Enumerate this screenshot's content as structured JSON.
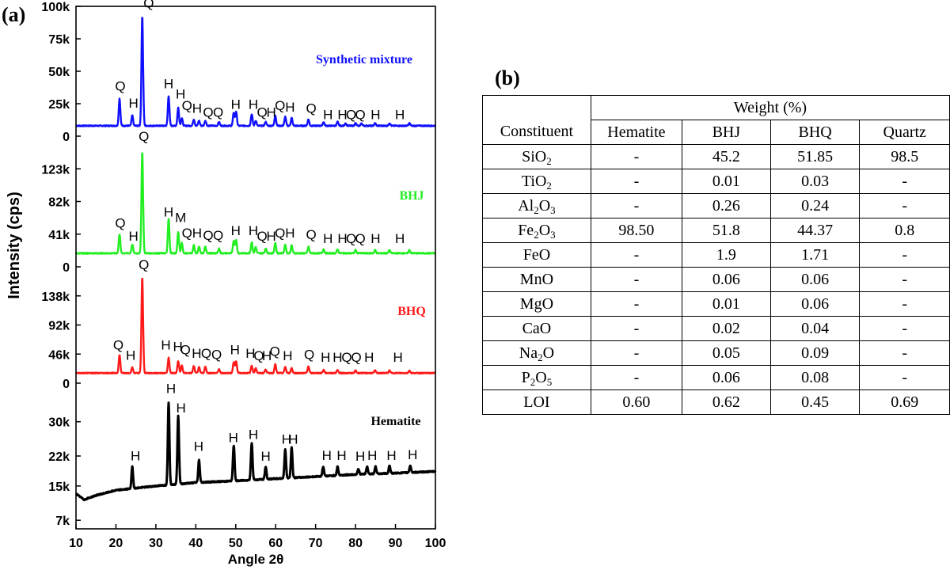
{
  "panel_a_label": "(a)",
  "panel_b_label": "(b)",
  "chart_data": {
    "type": "line",
    "xlabel": "Angle 2θ",
    "ylabel": "Intensity (cps)",
    "xlim": [
      10,
      100
    ],
    "xticks": [
      10,
      20,
      30,
      40,
      50,
      60,
      70,
      80,
      90,
      100
    ],
    "series": [
      {
        "name": "Synthetic mixture",
        "color": "#1010ff",
        "ylim": [
          0,
          100000
        ],
        "ytick_labels": [
          "0",
          "25k",
          "50k",
          "75k",
          "100k"
        ],
        "ytick_values": [
          0,
          25000,
          50000,
          75000,
          100000
        ],
        "baseline": 8000,
        "peaks": [
          {
            "x": 20.9,
            "y": 29000
          },
          {
            "x": 24.1,
            "y": 16000
          },
          {
            "x": 26.6,
            "y": 93000
          },
          {
            "x": 33.2,
            "y": 31000
          },
          {
            "x": 35.6,
            "y": 22000
          },
          {
            "x": 36.5,
            "y": 14000
          },
          {
            "x": 39.5,
            "y": 13000
          },
          {
            "x": 40.8,
            "y": 12000
          },
          {
            "x": 42.4,
            "y": 12000
          },
          {
            "x": 45.8,
            "y": 11000
          },
          {
            "x": 49.5,
            "y": 18000
          },
          {
            "x": 50.1,
            "y": 19000
          },
          {
            "x": 54.0,
            "y": 17000
          },
          {
            "x": 55.0,
            "y": 12000
          },
          {
            "x": 57.5,
            "y": 11000
          },
          {
            "x": 59.9,
            "y": 16000
          },
          {
            "x": 62.4,
            "y": 15000
          },
          {
            "x": 64.0,
            "y": 14000
          },
          {
            "x": 68.2,
            "y": 13000
          },
          {
            "x": 72.0,
            "y": 11000
          },
          {
            "x": 75.5,
            "y": 11000
          },
          {
            "x": 77.5,
            "y": 10000
          },
          {
            "x": 80.0,
            "y": 10000
          },
          {
            "x": 81.5,
            "y": 10000
          },
          {
            "x": 84.9,
            "y": 10000
          },
          {
            "x": 88.5,
            "y": 10000
          },
          {
            "x": 93.5,
            "y": 10000
          }
        ],
        "annotations": [
          {
            "label": "Q",
            "x": 21.1,
            "y": 35000
          },
          {
            "label": "H",
            "x": 24.4,
            "y": 22000
          },
          {
            "label": "Q",
            "x": 28.2,
            "y": 99000
          },
          {
            "label": "H",
            "x": 33.2,
            "y": 37000
          },
          {
            "label": "H",
            "x": 36.2,
            "y": 29000
          },
          {
            "label": "Q",
            "x": 37.8,
            "y": 20000
          },
          {
            "label": "H",
            "x": 40.3,
            "y": 18000
          },
          {
            "label": "Q",
            "x": 43.1,
            "y": 15000
          },
          {
            "label": "Q",
            "x": 45.6,
            "y": 15000
          },
          {
            "label": "H",
            "x": 50.0,
            "y": 21000
          },
          {
            "label": "H",
            "x": 54.4,
            "y": 21000
          },
          {
            "label": "Q",
            "x": 56.6,
            "y": 15000
          },
          {
            "label": "H",
            "x": 58.9,
            "y": 15000
          },
          {
            "label": "Q",
            "x": 61.1,
            "y": 20000
          },
          {
            "label": "H",
            "x": 63.6,
            "y": 19000
          },
          {
            "label": "Q",
            "x": 68.9,
            "y": 18000
          },
          {
            "label": "H",
            "x": 73.1,
            "y": 13000
          },
          {
            "label": "H",
            "x": 76.7,
            "y": 13000
          },
          {
            "label": "Q",
            "x": 78.9,
            "y": 13000
          },
          {
            "label": "Q",
            "x": 81.2,
            "y": 13000
          },
          {
            "label": "H",
            "x": 85.0,
            "y": 13000
          },
          {
            "label": "H",
            "x": 91.1,
            "y": 13000
          }
        ]
      },
      {
        "name": "BHJ",
        "color": "#22ee22",
        "ylim": [
          0,
          164000
        ],
        "ytick_labels": [
          "0",
          "41k",
          "82k",
          "123k"
        ],
        "ytick_values": [
          0,
          41000,
          82000,
          123000
        ],
        "baseline": 17000,
        "peaks": [
          {
            "x": 20.9,
            "y": 41000
          },
          {
            "x": 24.1,
            "y": 28000
          },
          {
            "x": 26.6,
            "y": 145000
          },
          {
            "x": 33.2,
            "y": 60000
          },
          {
            "x": 35.6,
            "y": 44000
          },
          {
            "x": 36.5,
            "y": 30000
          },
          {
            "x": 39.5,
            "y": 27000
          },
          {
            "x": 40.8,
            "y": 25000
          },
          {
            "x": 42.4,
            "y": 25000
          },
          {
            "x": 45.8,
            "y": 23000
          },
          {
            "x": 49.5,
            "y": 33000
          },
          {
            "x": 50.1,
            "y": 34000
          },
          {
            "x": 54.0,
            "y": 31000
          },
          {
            "x": 55.0,
            "y": 25000
          },
          {
            "x": 57.5,
            "y": 23000
          },
          {
            "x": 59.9,
            "y": 30000
          },
          {
            "x": 62.4,
            "y": 28000
          },
          {
            "x": 64.0,
            "y": 27000
          },
          {
            "x": 68.2,
            "y": 25000
          },
          {
            "x": 72.0,
            "y": 22000
          },
          {
            "x": 75.5,
            "y": 22000
          },
          {
            "x": 80.0,
            "y": 21000
          },
          {
            "x": 84.9,
            "y": 21000
          },
          {
            "x": 88.5,
            "y": 21000
          },
          {
            "x": 93.5,
            "y": 21000
          }
        ],
        "annotations": [
          {
            "label": "Q",
            "x": 21.1,
            "y": 49000
          },
          {
            "label": "H",
            "x": 24.4,
            "y": 33000
          },
          {
            "label": "Q",
            "x": 27.0,
            "y": 158000
          },
          {
            "label": "H",
            "x": 33.2,
            "y": 63000
          },
          {
            "label": "M",
            "x": 36.2,
            "y": 56000
          },
          {
            "label": "Q",
            "x": 37.8,
            "y": 37000
          },
          {
            "label": "H",
            "x": 40.3,
            "y": 37000
          },
          {
            "label": "Q",
            "x": 43.1,
            "y": 34000
          },
          {
            "label": "Q",
            "x": 45.6,
            "y": 34000
          },
          {
            "label": "H",
            "x": 50.0,
            "y": 40000
          },
          {
            "label": "H",
            "x": 54.4,
            "y": 40000
          },
          {
            "label": "Q",
            "x": 56.6,
            "y": 33000
          },
          {
            "label": "H",
            "x": 58.9,
            "y": 33000
          },
          {
            "label": "Q",
            "x": 61.1,
            "y": 37000
          },
          {
            "label": "H",
            "x": 63.6,
            "y": 37000
          },
          {
            "label": "Q",
            "x": 68.9,
            "y": 35000
          },
          {
            "label": "H",
            "x": 73.1,
            "y": 30000
          },
          {
            "label": "H",
            "x": 76.7,
            "y": 30000
          },
          {
            "label": "Q",
            "x": 78.9,
            "y": 30000
          },
          {
            "label": "Q",
            "x": 81.2,
            "y": 30000
          },
          {
            "label": "H",
            "x": 85.0,
            "y": 30000
          },
          {
            "label": "H",
            "x": 91.1,
            "y": 30000
          }
        ]
      },
      {
        "name": "BHQ",
        "color": "#ff1a1a",
        "ylim": [
          0,
          184000
        ],
        "ytick_labels": [
          "0",
          "46k",
          "92k",
          "138k"
        ],
        "ytick_values": [
          0,
          46000,
          92000,
          138000
        ],
        "baseline": 16000,
        "peaks": [
          {
            "x": 20.9,
            "y": 45000
          },
          {
            "x": 24.1,
            "y": 25000
          },
          {
            "x": 26.6,
            "y": 168000
          },
          {
            "x": 33.2,
            "y": 40000
          },
          {
            "x": 35.6,
            "y": 35000
          },
          {
            "x": 36.5,
            "y": 28000
          },
          {
            "x": 39.5,
            "y": 27000
          },
          {
            "x": 40.8,
            "y": 25000
          },
          {
            "x": 42.4,
            "y": 26000
          },
          {
            "x": 45.8,
            "y": 22000
          },
          {
            "x": 49.5,
            "y": 33000
          },
          {
            "x": 50.1,
            "y": 35000
          },
          {
            "x": 54.0,
            "y": 28000
          },
          {
            "x": 55.0,
            "y": 24000
          },
          {
            "x": 57.5,
            "y": 22000
          },
          {
            "x": 59.9,
            "y": 30000
          },
          {
            "x": 62.4,
            "y": 26000
          },
          {
            "x": 64.0,
            "y": 24000
          },
          {
            "x": 68.2,
            "y": 27000
          },
          {
            "x": 72.0,
            "y": 21000
          },
          {
            "x": 75.5,
            "y": 21000
          },
          {
            "x": 80.0,
            "y": 20000
          },
          {
            "x": 84.9,
            "y": 20000
          },
          {
            "x": 88.5,
            "y": 20000
          },
          {
            "x": 93.5,
            "y": 20000
          }
        ],
        "annotations": [
          {
            "label": "Q",
            "x": 20.6,
            "y": 53000
          },
          {
            "label": "H",
            "x": 23.7,
            "y": 37000
          },
          {
            "label": "Q",
            "x": 27.0,
            "y": 180000
          },
          {
            "label": "H",
            "x": 32.5,
            "y": 53000
          },
          {
            "label": "H",
            "x": 35.5,
            "y": 51000
          },
          {
            "label": "Q",
            "x": 37.4,
            "y": 46000
          },
          {
            "label": "H",
            "x": 40.2,
            "y": 40000
          },
          {
            "label": "Q",
            "x": 42.6,
            "y": 40000
          },
          {
            "label": "Q",
            "x": 45.2,
            "y": 38000
          },
          {
            "label": "H",
            "x": 49.8,
            "y": 46000
          },
          {
            "label": "H",
            "x": 53.7,
            "y": 40000
          },
          {
            "label": "Q",
            "x": 55.8,
            "y": 36000
          },
          {
            "label": "H",
            "x": 57.8,
            "y": 36000
          },
          {
            "label": "Q",
            "x": 59.8,
            "y": 43000
          },
          {
            "label": "H",
            "x": 63.0,
            "y": 36000
          },
          {
            "label": "Q",
            "x": 68.4,
            "y": 38000
          },
          {
            "label": "H",
            "x": 72.5,
            "y": 34000
          },
          {
            "label": "H",
            "x": 75.5,
            "y": 34000
          },
          {
            "label": "Q",
            "x": 77.8,
            "y": 34000
          },
          {
            "label": "Q",
            "x": 80.2,
            "y": 34000
          },
          {
            "label": "H",
            "x": 83.4,
            "y": 34000
          },
          {
            "label": "H",
            "x": 90.6,
            "y": 34000
          }
        ]
      },
      {
        "name": "Hematite",
        "color": "#000000",
        "ylim": [
          5000,
          39000
        ],
        "ytick_labels": [
          "7k",
          "15k",
          "22k",
          "30k"
        ],
        "ytick_values": [
          7000,
          15000,
          22000,
          30000
        ],
        "baseline_points": [
          [
            10,
            13200
          ],
          [
            12,
            11800
          ],
          [
            15,
            12800
          ],
          [
            20,
            14000
          ],
          [
            30,
            15000
          ],
          [
            40,
            15800
          ],
          [
            50,
            16200
          ],
          [
            60,
            16700
          ],
          [
            70,
            17200
          ],
          [
            80,
            17700
          ],
          [
            90,
            18000
          ],
          [
            100,
            18400
          ]
        ],
        "peaks": [
          {
            "x": 24.1,
            "y": 19500
          },
          {
            "x": 33.2,
            "y": 34500
          },
          {
            "x": 35.6,
            "y": 31500
          },
          {
            "x": 40.8,
            "y": 21000
          },
          {
            "x": 49.5,
            "y": 24500
          },
          {
            "x": 54.0,
            "y": 25000
          },
          {
            "x": 57.5,
            "y": 19500
          },
          {
            "x": 62.4,
            "y": 23500
          },
          {
            "x": 64.0,
            "y": 24000
          },
          {
            "x": 71.9,
            "y": 19500
          },
          {
            "x": 75.5,
            "y": 19500
          },
          {
            "x": 80.7,
            "y": 19000
          },
          {
            "x": 82.9,
            "y": 19500
          },
          {
            "x": 85.0,
            "y": 19500
          },
          {
            "x": 88.5,
            "y": 19800
          },
          {
            "x": 93.7,
            "y": 19800
          }
        ],
        "annotations": [
          {
            "label": "H",
            "x": 24.9,
            "y": 21000
          },
          {
            "label": "H",
            "x": 33.8,
            "y": 36700
          },
          {
            "label": "H",
            "x": 36.3,
            "y": 32200
          },
          {
            "label": "H",
            "x": 40.7,
            "y": 23200
          },
          {
            "label": "H",
            "x": 49.4,
            "y": 25200
          },
          {
            "label": "H",
            "x": 54.4,
            "y": 26000
          },
          {
            "label": "H",
            "x": 57.5,
            "y": 20900
          },
          {
            "label": "H",
            "x": 62.7,
            "y": 24900
          },
          {
            "label": "H",
            "x": 64.4,
            "y": 24900
          },
          {
            "label": "H",
            "x": 72.8,
            "y": 21100
          },
          {
            "label": "H",
            "x": 76.5,
            "y": 21100
          },
          {
            "label": "H",
            "x": 81.2,
            "y": 20900
          },
          {
            "label": "H",
            "x": 84.2,
            "y": 21100
          },
          {
            "label": "H",
            "x": 89.0,
            "y": 21100
          },
          {
            "label": "H",
            "x": 94.3,
            "y": 21300
          }
        ]
      }
    ]
  },
  "table": {
    "header_group": "Weight  (%)",
    "constituent_label": "Constituent",
    "columns": [
      "Hematite",
      "BHJ",
      "BHQ",
      "Quartz"
    ],
    "rows": [
      {
        "base": "SiO",
        "sub": "2",
        "post": "",
        "values": [
          "-",
          "45.2",
          "51.85",
          "98.5"
        ]
      },
      {
        "base": "TiO",
        "sub": "2",
        "post": "",
        "values": [
          "-",
          "0.01",
          "0.03",
          "-"
        ]
      },
      {
        "base": "Al",
        "sub": "2",
        "post": "O",
        "sub2": "3",
        "values": [
          "-",
          "0.26",
          "0.24",
          "-"
        ]
      },
      {
        "base": "Fe",
        "sub": "2",
        "post": "O",
        "sub2": "3",
        "values": [
          "98.50",
          "51.8",
          "44.37",
          "0.8"
        ]
      },
      {
        "base": "FeO",
        "sub": "",
        "post": "",
        "values": [
          "-",
          "1.9",
          "1.71",
          "-"
        ]
      },
      {
        "base": "MnO",
        "sub": "",
        "post": "",
        "values": [
          "-",
          "0.06",
          "0.06",
          "-"
        ]
      },
      {
        "base": "MgO",
        "sub": "",
        "post": "",
        "values": [
          "-",
          "0.01",
          "0.06",
          "-"
        ]
      },
      {
        "base": "CaO",
        "sub": "",
        "post": "",
        "values": [
          "-",
          "0.02",
          "0.04",
          "-"
        ]
      },
      {
        "base": "Na",
        "sub": "2",
        "post": "O",
        "values": [
          "-",
          "0.05",
          "0.09",
          "-"
        ]
      },
      {
        "base": "P",
        "sub": "2",
        "post": "O",
        "sub2": "5",
        "values": [
          "-",
          "0.06",
          "0.08",
          "-"
        ]
      },
      {
        "base": "LOI",
        "sub": "",
        "post": "",
        "values": [
          "0.60",
          "0.62",
          "0.45",
          "0.69"
        ]
      }
    ]
  }
}
